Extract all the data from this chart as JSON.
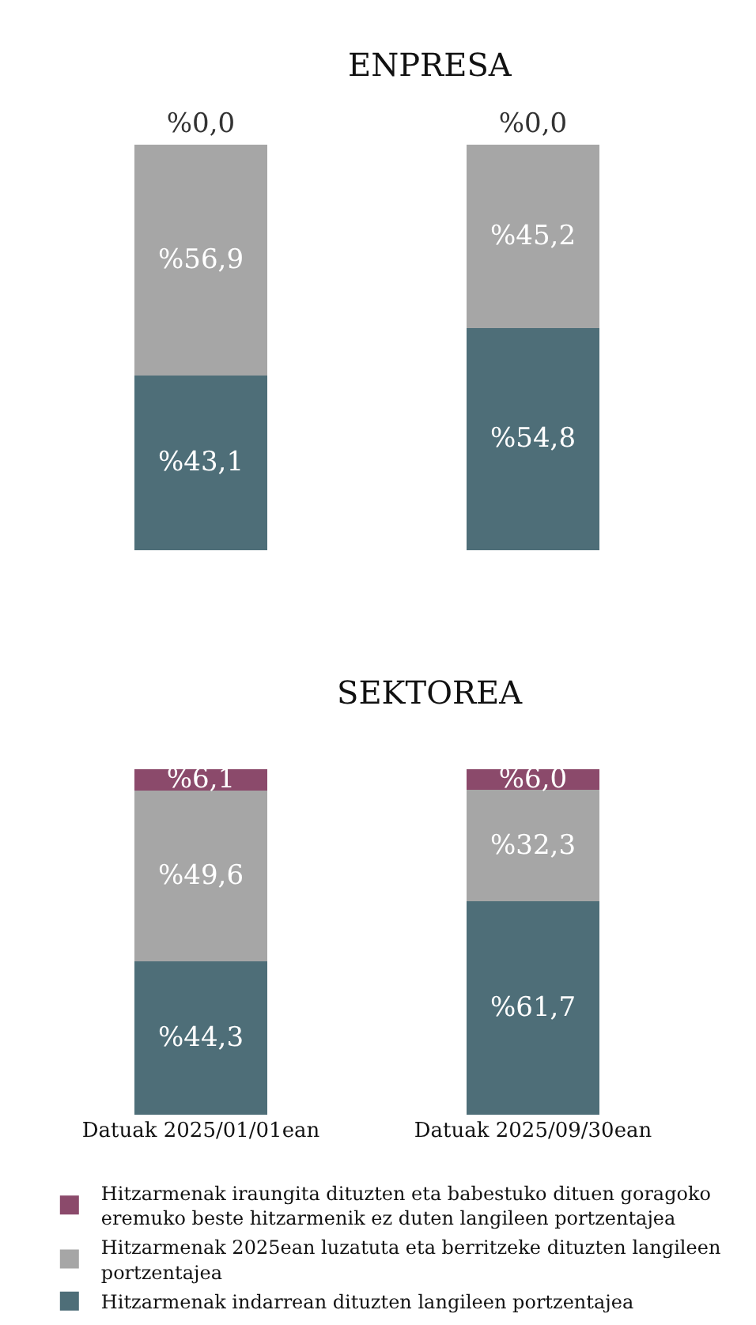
{
  "chart_data": [
    {
      "type": "bar",
      "title": "ENPRESA",
      "stacked": true,
      "categories": [
        null,
        null
      ],
      "series": [
        {
          "color": "#4e6e78",
          "values": [
            43.1,
            54.8
          ],
          "value_labels": [
            "%43,1",
            "%54,8"
          ]
        },
        {
          "color": "#a6a6a6",
          "values": [
            56.9,
            45.2
          ],
          "value_labels": [
            "%56,9",
            "%45,2"
          ]
        },
        {
          "color": "#8b4a6b",
          "values": [
            0.0,
            0.0
          ],
          "value_labels": [
            "%0,0",
            "%0,0"
          ]
        }
      ]
    },
    {
      "type": "bar",
      "title": "SEKTOREA",
      "stacked": true,
      "categories": [
        "Datuak 2025/01/01ean",
        "Datuak 2025/09/30ean"
      ],
      "tick_labels": "x",
      "legend": "bottom",
      "series": [
        {
          "name": "Hitzarmenak indarrean dituzten langileen portzentajea",
          "color": "#4e6e78",
          "values": [
            44.3,
            61.7
          ],
          "value_labels": [
            "%44,3",
            "%61,7"
          ]
        },
        {
          "name": "Hitzarmenak 2025ean luzatuta eta berritzeke dituzten langileen portzentajea",
          "color": "#a6a6a6",
          "values": [
            49.6,
            32.3
          ],
          "value_labels": [
            "%49,6",
            "%32,3"
          ]
        },
        {
          "name": "Hitzarmenak iraungita dituzten eta babestuko dituen goragoko eremuko beste hitzarmenik ez duten langileen portzentajea",
          "color": "#8b4a6b",
          "values": [
            6.1,
            6.0
          ],
          "value_labels": [
            "%6,1",
            "%6,0"
          ]
        }
      ]
    }
  ]
}
